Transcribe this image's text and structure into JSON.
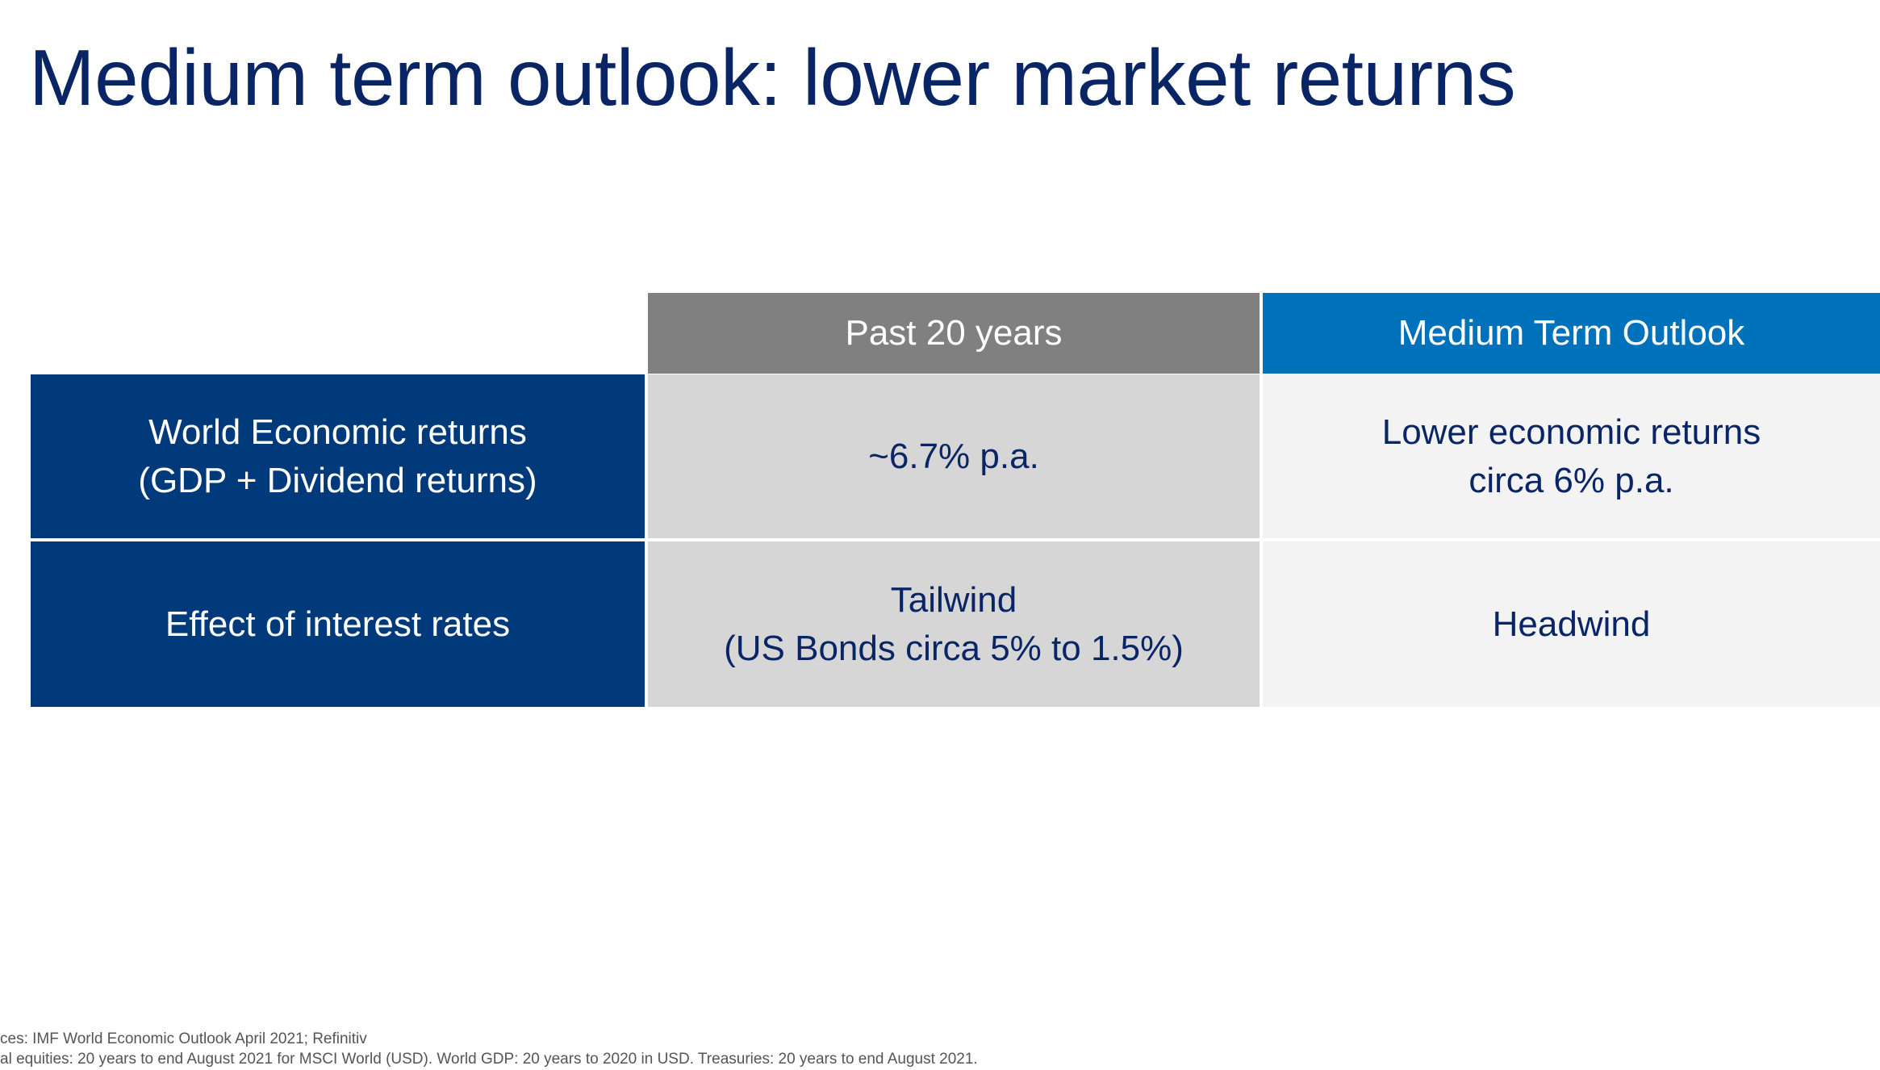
{
  "title": "Medium term outlook: lower market returns",
  "table": {
    "headers": [
      "Past 20 years",
      "Medium Term Outlook"
    ],
    "rows": [
      {
        "label": [
          "World Economic returns",
          "(GDP + Dividend returns)"
        ],
        "past": [
          "~6.7% p.a."
        ],
        "outlook": [
          "Lower economic returns",
          "circa 6% p.a."
        ]
      },
      {
        "label": [
          "Effect of interest rates"
        ],
        "past": [
          "Tailwind",
          "(US Bonds circa 5% to 1.5%)"
        ],
        "outlook": [
          "Headwind"
        ]
      }
    ]
  },
  "footnotes": [
    "ces: IMF World Economic Outlook April 2021; Refinitiv",
    "al equities: 20 years to end August 2021 for MSCI World (USD). World GDP: 20 years to 2020 in USD. Treasuries: 20 years to end August 2021."
  ],
  "colors": {
    "title": "#0a2566",
    "header_past": "#808080",
    "header_outlook": "#0072bc",
    "row_label": "#003a7a",
    "past_cell": "#d6d6d6",
    "outlook_cell": "#f3f3f3"
  }
}
